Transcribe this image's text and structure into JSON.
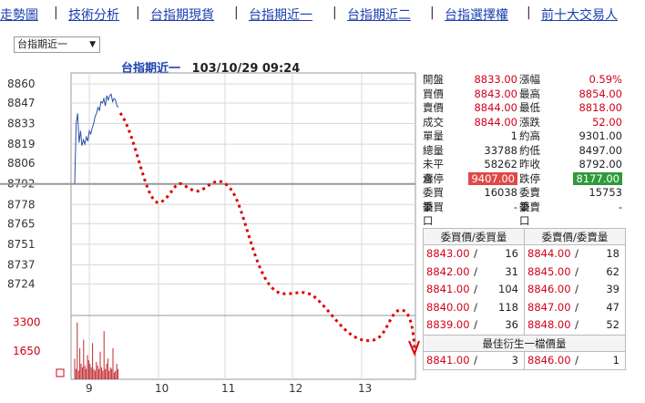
{
  "nav": {
    "items": [
      "走勢圖",
      "技術分析",
      "台指期現貨",
      "台指期近一",
      "台指期近二",
      "台指選擇權",
      "前十大交易人"
    ],
    "separator": "|"
  },
  "selector": {
    "value": "台指期近一",
    "arrow": "▼"
  },
  "header": {
    "title": "台指期近一",
    "datetime": "103/10/29 09:24"
  },
  "quote": {
    "rows": [
      {
        "k": "開盤",
        "v": "8833.00",
        "k2": "漲幅",
        "v2": "0.59%"
      },
      {
        "k": "買價",
        "v": "8843.00",
        "k2": "最高",
        "v2": "8854.00"
      },
      {
        "k": "賣價",
        "v": "8844.00",
        "k2": "最低",
        "v2": "8818.00"
      },
      {
        "k": "成交",
        "v": "8844.00",
        "k2": "漲跌",
        "v2": "52.00"
      },
      {
        "k": "單量",
        "v": "1",
        "k2": "約高",
        "v2": "9301.00"
      },
      {
        "k": "總量",
        "v": "33788",
        "k2": "約低",
        "v2": "8497.00"
      },
      {
        "k": "未平倉",
        "v": "58262",
        "k2": "昨收",
        "v2": "8792.00"
      },
      {
        "k": "漲停",
        "v": "9407.00",
        "k2": "跌停",
        "v2": "8177.00"
      },
      {
        "k": "委買筆",
        "v": "16038",
        "k2": "委賣筆",
        "v2": "15753"
      },
      {
        "k": "委買口",
        "v": "-",
        "k2": "委賣口",
        "v2": "-"
      }
    ]
  },
  "orderbook": {
    "bid_header": "委買價/委買量",
    "ask_header": "委賣價/委賣量",
    "sep": "/",
    "bids": [
      {
        "price": "8843.00",
        "qty": "16"
      },
      {
        "price": "8842.00",
        "qty": "31"
      },
      {
        "price": "8841.00",
        "qty": "104"
      },
      {
        "price": "8840.00",
        "qty": "118"
      },
      {
        "price": "8839.00",
        "qty": "36"
      }
    ],
    "asks": [
      {
        "price": "8844.00",
        "qty": "18"
      },
      {
        "price": "8845.00",
        "qty": "62"
      },
      {
        "price": "8846.00",
        "qty": "39"
      },
      {
        "price": "8847.00",
        "qty": "47"
      },
      {
        "price": "8848.00",
        "qty": "52"
      }
    ],
    "best_title": "最佳衍生一檔價量",
    "best_bid": {
      "price": "8841.00",
      "qty": "3"
    },
    "best_ask": {
      "price": "8846.00",
      "qty": "1"
    }
  },
  "chart_data": {
    "type": "line",
    "y_ticks": [
      8860,
      8847,
      8833,
      8819,
      8806,
      8792,
      8778,
      8765,
      8751,
      8737,
      8724
    ],
    "ylim": [
      8710,
      8860
    ],
    "reference": 8792,
    "x_ticks": [
      "9",
      "10",
      "11",
      "12",
      "13"
    ],
    "series": [
      {
        "x": [
          0.0,
          0.05,
          0.1,
          0.15,
          0.2,
          0.25,
          0.3,
          0.35,
          0.4,
          0.45,
          0.5,
          0.55,
          0.6,
          0.65,
          0.7,
          0.75,
          0.8,
          0.85,
          0.9,
          0.95,
          1.0,
          1.05,
          1.1,
          1.15,
          1.2,
          1.25,
          1.3,
          1.35,
          1.4,
          1.45,
          1.5
        ],
        "values": [
          8792,
          8833,
          8840,
          8820,
          8828,
          8818,
          8822,
          8819,
          8824,
          8821,
          8828,
          8826,
          8830,
          8833,
          8838,
          8840,
          8844,
          8842,
          8848,
          8847,
          8850,
          8845,
          8852,
          8849,
          8852,
          8853,
          8848,
          8850,
          8849,
          8845,
          8844
        ]
      }
    ],
    "volume_ticks": [
      "3300",
      "1650"
    ],
    "volume": [
      1200,
      600,
      3300,
      500,
      1800,
      900,
      700,
      2300,
      800,
      600,
      1400,
      1100,
      900,
      700,
      2100,
      600,
      500,
      1000,
      800,
      600,
      1600,
      700,
      500,
      2800,
      600,
      900,
      1200,
      500,
      700,
      600,
      1800,
      400,
      500,
      900,
      600
    ],
    "volume_ylim": [
      0,
      3600
    ],
    "colors": {
      "line": "#2b4fa8",
      "volume": "#c0282d",
      "reference": "#9a9a9a",
      "forecast": "#e00000",
      "grid": "#d8d8d8"
    }
  }
}
